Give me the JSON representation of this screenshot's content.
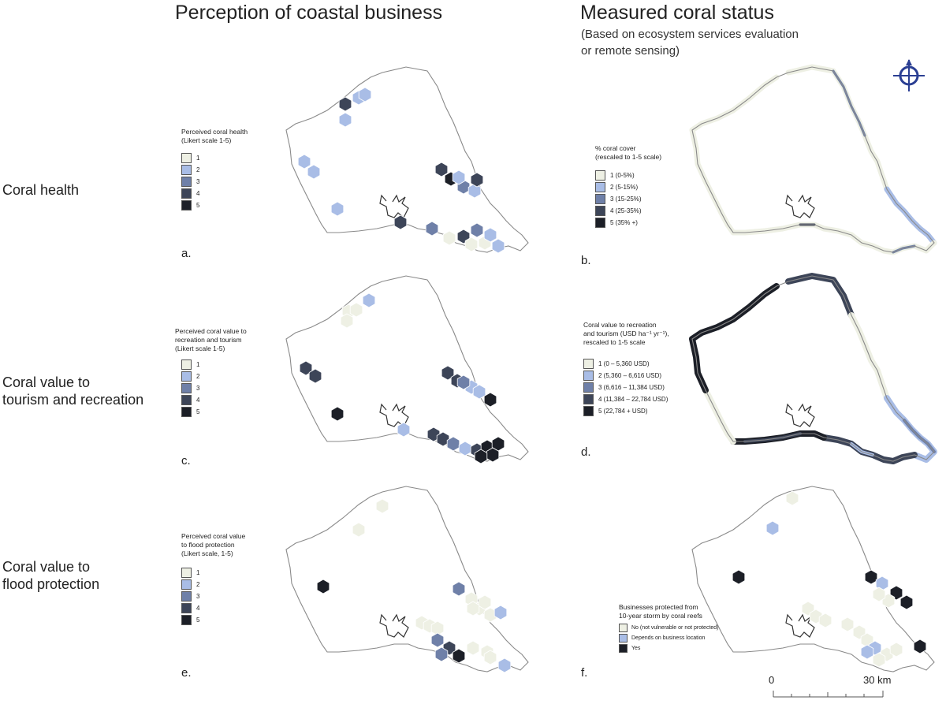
{
  "headers": {
    "left_title": "Perception of coastal business",
    "right_title": "Measured coral status",
    "right_subtitle_1": "(Based on ecosystem services evaluation",
    "right_subtitle_2": "or remote sensing)"
  },
  "rows": {
    "row1": "Coral health",
    "row2_line1": "Coral value to",
    "row2_line2": "tourism and recreation",
    "row3_line1": "Coral value to",
    "row3_line2": "flood protection"
  },
  "panels": {
    "a": "a.",
    "b": "b.",
    "c": "c.",
    "d": "d.",
    "e": "e.",
    "f": "f."
  },
  "legend_a": {
    "title_1": "Perceived coral health",
    "title_2": "(Likert scale 1-5)",
    "items": [
      "1",
      "2",
      "3",
      "4",
      "5"
    ]
  },
  "legend_b": {
    "title_1": "% coral cover",
    "title_2": "(rescaled to 1-5 scale)",
    "items": [
      "1 (0-5%)",
      "2 (5-15%)",
      "3 (15-25%)",
      "4 (25-35%)",
      "5 (35% +)"
    ]
  },
  "legend_c": {
    "title_1": "Perceived coral value to",
    "title_2": "recreation and tourism",
    "title_3": "(Likert scale 1-5)",
    "items": [
      "1",
      "2",
      "3",
      "4",
      "5"
    ]
  },
  "legend_d": {
    "title_1": "Coral value to recreation",
    "title_2": "and tourism (USD ha⁻¹ yr⁻¹),",
    "title_3": "rescaled to 1-5 scale",
    "items": [
      "1 (0 – 5,360 USD)",
      "2 (5,360 – 6,616 USD)",
      "3 (6,616 – 11,384 USD)",
      "4 (11,384 – 22,784 USD)",
      "5 (22,784 + USD)"
    ]
  },
  "legend_e": {
    "title_1": "Perceived coral value",
    "title_2": "to flood protection",
    "title_3": "(Likert scale, 1-5)",
    "items": [
      "1",
      "2",
      "3",
      "4",
      "5"
    ]
  },
  "legend_f": {
    "title_1": "Businesses protected from",
    "title_2": "10-year storm by coral reefs",
    "items": [
      "No (not vulnerable or not protected)",
      "Depends on business location",
      "Yes"
    ]
  },
  "scale_bar": {
    "start": "0",
    "end": "30 km"
  },
  "icons": {
    "compass": "crosshair-north-arrow-icon"
  },
  "colors": {
    "c1": "#eef0e4",
    "c2": "#a9bde6",
    "c3": "#6f80a8",
    "c4": "#3d4558",
    "c5": "#1c1f27",
    "coast": "#8a8a8a",
    "compass": "#2b3f93"
  }
}
